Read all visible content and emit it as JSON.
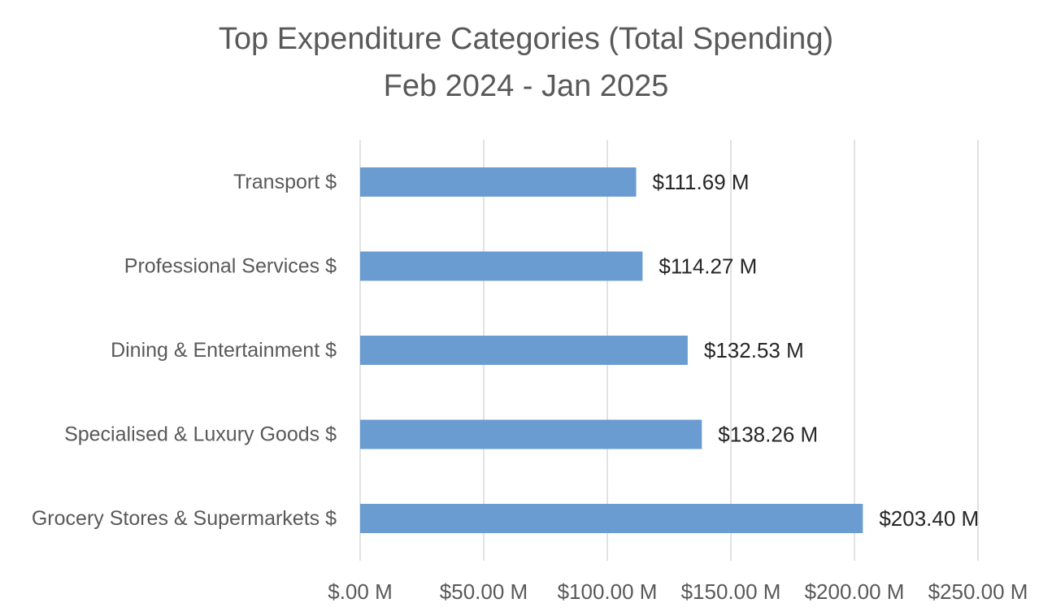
{
  "chart_data": {
    "type": "bar",
    "orientation": "horizontal",
    "title": [
      "Top Expenditure Categories (Total Spending)",
      "Feb 2024 - Jan 2025"
    ],
    "categories": [
      "Transport $",
      "Professional Services $",
      "Dining & Entertainment $",
      "Specialised & Luxury Goods $",
      "Grocery Stores & Supermarkets $"
    ],
    "values": [
      111.69,
      114.27,
      132.53,
      138.26,
      203.4
    ],
    "data_labels": [
      "$111.69 M",
      "$114.27 M",
      "$132.53 M",
      "$138.26 M",
      "$203.40 M"
    ],
    "x_ticks": [
      0,
      50,
      100,
      150,
      200,
      250
    ],
    "x_tick_labels": [
      "$.00 M",
      "$50.00 M",
      "$100.00 M",
      "$150.00 M",
      "$200.00 M",
      "$250.00 M"
    ],
    "xlim": [
      0,
      250
    ],
    "xlabel": "",
    "ylabel": "",
    "grid": "vertical",
    "legend": "none",
    "bar_color": "#6a9bd1"
  }
}
